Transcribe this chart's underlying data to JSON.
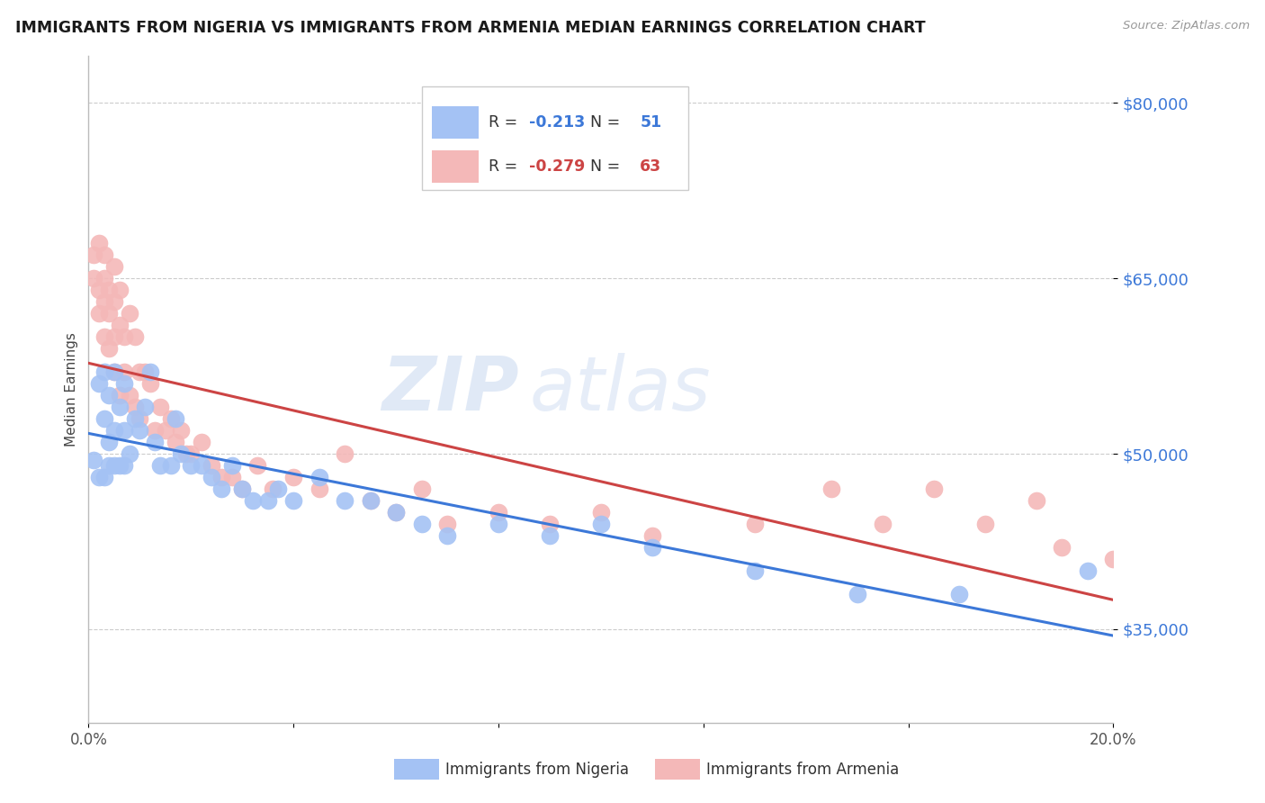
{
  "title": "IMMIGRANTS FROM NIGERIA VS IMMIGRANTS FROM ARMENIA MEDIAN EARNINGS CORRELATION CHART",
  "source": "Source: ZipAtlas.com",
  "ylabel": "Median Earnings",
  "y_ticks": [
    35000,
    50000,
    65000,
    80000
  ],
  "y_tick_labels": [
    "$35,000",
    "$50,000",
    "$65,000",
    "$80,000"
  ],
  "y_min": 27000,
  "y_max": 84000,
  "x_min": 0.0,
  "x_max": 0.2,
  "nigeria_color": "#a4c2f4",
  "armenia_color": "#f4b8b8",
  "nigeria_line_color": "#3c78d8",
  "armenia_line_color": "#cc4444",
  "nigeria_R": -0.213,
  "nigeria_N": 51,
  "armenia_R": -0.279,
  "armenia_N": 63,
  "watermark_zip": "ZIP",
  "watermark_atlas": "atlas",
  "legend_label_nigeria": "Immigrants from Nigeria",
  "legend_label_armenia": "Immigrants from Armenia",
  "nigeria_scatter_x": [
    0.001,
    0.002,
    0.002,
    0.003,
    0.003,
    0.003,
    0.004,
    0.004,
    0.004,
    0.005,
    0.005,
    0.005,
    0.006,
    0.006,
    0.007,
    0.007,
    0.007,
    0.008,
    0.009,
    0.01,
    0.011,
    0.012,
    0.013,
    0.014,
    0.016,
    0.017,
    0.018,
    0.02,
    0.022,
    0.024,
    0.026,
    0.028,
    0.03,
    0.032,
    0.035,
    0.037,
    0.04,
    0.045,
    0.05,
    0.055,
    0.06,
    0.065,
    0.07,
    0.08,
    0.09,
    0.1,
    0.11,
    0.13,
    0.15,
    0.17,
    0.195
  ],
  "nigeria_scatter_y": [
    49500,
    56000,
    48000,
    57000,
    53000,
    48000,
    55000,
    51000,
    49000,
    57000,
    52000,
    49000,
    54000,
    49000,
    56000,
    52000,
    49000,
    50000,
    53000,
    52000,
    54000,
    57000,
    51000,
    49000,
    49000,
    53000,
    50000,
    49000,
    49000,
    48000,
    47000,
    49000,
    47000,
    46000,
    46000,
    47000,
    46000,
    48000,
    46000,
    46000,
    45000,
    44000,
    43000,
    44000,
    43000,
    44000,
    42000,
    40000,
    38000,
    38000,
    40000
  ],
  "armenia_scatter_x": [
    0.001,
    0.001,
    0.002,
    0.002,
    0.002,
    0.003,
    0.003,
    0.003,
    0.003,
    0.004,
    0.004,
    0.004,
    0.005,
    0.005,
    0.005,
    0.005,
    0.006,
    0.006,
    0.006,
    0.007,
    0.007,
    0.008,
    0.008,
    0.009,
    0.009,
    0.01,
    0.01,
    0.011,
    0.012,
    0.013,
    0.014,
    0.015,
    0.016,
    0.017,
    0.018,
    0.019,
    0.02,
    0.022,
    0.024,
    0.026,
    0.028,
    0.03,
    0.033,
    0.036,
    0.04,
    0.045,
    0.05,
    0.055,
    0.06,
    0.065,
    0.07,
    0.08,
    0.09,
    0.1,
    0.11,
    0.13,
    0.145,
    0.155,
    0.165,
    0.175,
    0.185,
    0.19,
    0.2
  ],
  "armenia_scatter_y": [
    65000,
    67000,
    68000,
    64000,
    62000,
    67000,
    65000,
    63000,
    60000,
    64000,
    62000,
    59000,
    66000,
    63000,
    60000,
    57000,
    64000,
    61000,
    55000,
    60000,
    57000,
    62000,
    55000,
    60000,
    54000,
    57000,
    53000,
    57000,
    56000,
    52000,
    54000,
    52000,
    53000,
    51000,
    52000,
    50000,
    50000,
    51000,
    49000,
    48000,
    48000,
    47000,
    49000,
    47000,
    48000,
    47000,
    50000,
    46000,
    45000,
    47000,
    44000,
    45000,
    44000,
    45000,
    43000,
    44000,
    47000,
    44000,
    47000,
    44000,
    46000,
    42000,
    41000
  ]
}
